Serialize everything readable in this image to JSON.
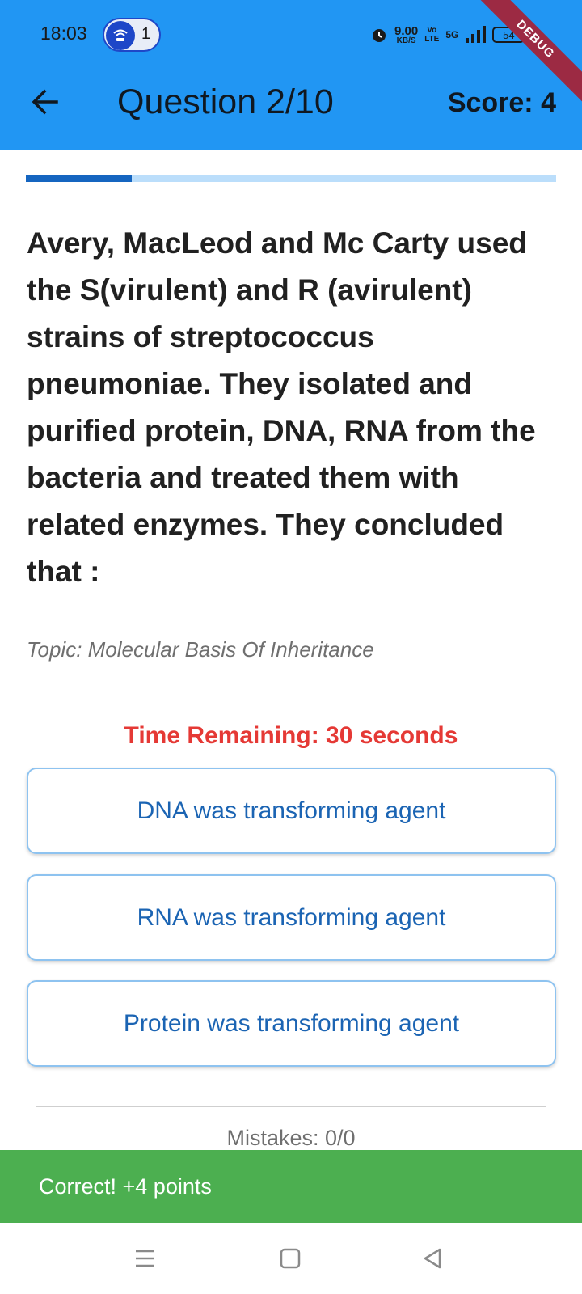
{
  "status_bar": {
    "time": "18:03",
    "notification_count": "1",
    "net_speed_value": "9.00",
    "net_speed_unit": "KB/S",
    "volte_top": "Vo",
    "volte_bottom": "LTE",
    "network": "5G",
    "battery": "54"
  },
  "debug_banner": "DEBUG",
  "app_bar": {
    "title": "Question 2/10",
    "score": "Score: 4",
    "background_color": "#2196f3"
  },
  "progress": {
    "value": 0.2,
    "fill_color": "#1565c0",
    "track_color": "#bbdefb"
  },
  "question": {
    "text": "Avery, MacLeod and Mc Carty used the S(virulent) and R (avirulent) strains of streptococcus pneumoniae. They isolated and purified protein, DNA, RNA from the bacteria and treated them with related enzymes. They concluded that :",
    "topic": "Topic: Molecular Basis Of Inheritance"
  },
  "timer": {
    "text": "Time Remaining: 30 seconds",
    "color": "#e53935"
  },
  "options": [
    {
      "label": "DNA was transforming agent"
    },
    {
      "label": "RNA was transforming agent"
    },
    {
      "label": "Protein was transforming agent"
    }
  ],
  "mistakes": "Mistakes: 0/0",
  "snackbar": {
    "text": "Correct! +4 points",
    "color": "#4caf50"
  },
  "nav_bar": {
    "icons": [
      "recents-icon",
      "home-icon",
      "back-triangle-icon"
    ]
  }
}
